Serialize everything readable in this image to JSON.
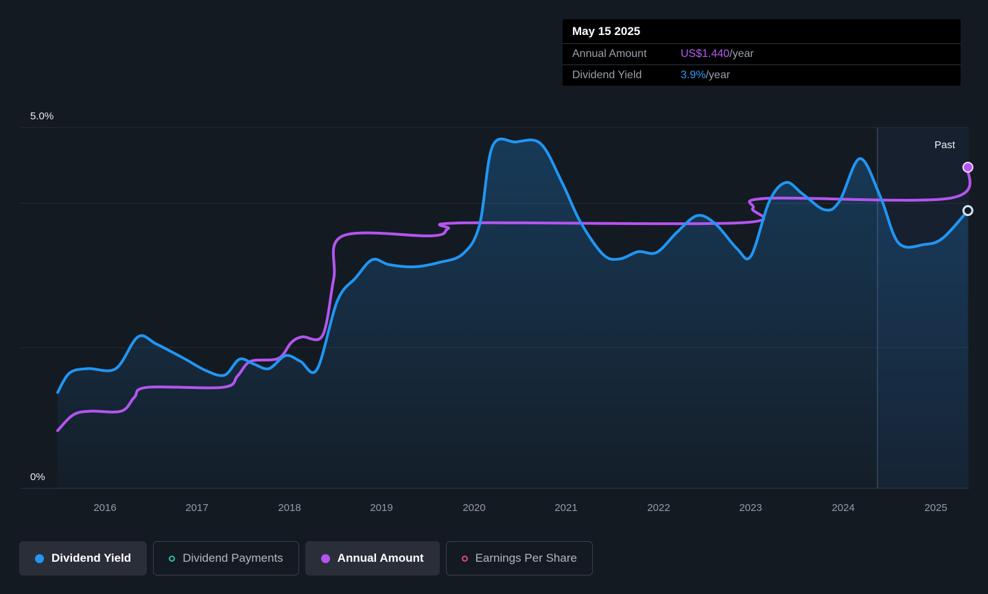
{
  "tooltip": {
    "date": "May 15 2025",
    "rows": [
      {
        "label": "Annual Amount",
        "value": "US$1.440",
        "suffix": "/year",
        "color": "#b85cf2"
      },
      {
        "label": "Dividend Yield",
        "value": "3.9%",
        "suffix": "/year",
        "color": "#2f9df5"
      }
    ]
  },
  "axis": {
    "y_top": "5.0%",
    "y_bottom": "0%",
    "years": [
      "2016",
      "2017",
      "2018",
      "2019",
      "2020",
      "2021",
      "2022",
      "2023",
      "2024",
      "2025"
    ],
    "past_label": "Past"
  },
  "legend": [
    {
      "label": "Dividend Yield",
      "marker": "filled",
      "color": "#2196f3",
      "active": true
    },
    {
      "label": "Dividend Payments",
      "marker": "open",
      "color": "#2abfad",
      "active": false
    },
    {
      "label": "Annual Amount",
      "marker": "filled",
      "color": "#b455f0",
      "active": true
    },
    {
      "label": "Earnings Per Share",
      "marker": "open",
      "color": "#e0487f",
      "active": false
    }
  ],
  "chart_data": {
    "type": "line",
    "title": "Dividend history",
    "x_domain": [
      2015.49,
      2025.36
    ],
    "y_domain": [
      0,
      5
    ],
    "y_unit": "%",
    "gridlines_pct": [
      0,
      1.95,
      3.95,
      5
    ],
    "past_divider_x": 2024.37,
    "series": [
      {
        "name": "Annual Amount",
        "color": "#b455f0",
        "area": false,
        "end_marker": "filled",
        "points": [
          [
            2015.49,
            0.8
          ],
          [
            2015.66,
            1.02
          ],
          [
            2015.85,
            1.07
          ],
          [
            2016.18,
            1.07
          ],
          [
            2016.32,
            1.26
          ],
          [
            2016.46,
            1.4
          ],
          [
            2017.28,
            1.4
          ],
          [
            2017.44,
            1.56
          ],
          [
            2017.58,
            1.76
          ],
          [
            2017.88,
            1.8
          ],
          [
            2018.02,
            2.02
          ],
          [
            2018.14,
            2.1
          ],
          [
            2018.36,
            2.12
          ],
          [
            2018.48,
            2.9
          ],
          [
            2018.58,
            3.5
          ],
          [
            2019.55,
            3.5
          ],
          [
            2019.72,
            3.6
          ],
          [
            2019.9,
            3.68
          ],
          [
            2022.88,
            3.68
          ],
          [
            2023.02,
            3.88
          ],
          [
            2023.18,
            4.02
          ],
          [
            2025.15,
            4.02
          ],
          [
            2025.35,
            4.45
          ]
        ]
      },
      {
        "name": "Dividend Yield",
        "color": "#2196f3",
        "area": true,
        "end_marker": "open",
        "points": [
          [
            2015.49,
            1.33
          ],
          [
            2015.62,
            1.6
          ],
          [
            2015.82,
            1.66
          ],
          [
            2016.12,
            1.66
          ],
          [
            2016.36,
            2.1
          ],
          [
            2016.56,
            2.0
          ],
          [
            2016.86,
            1.8
          ],
          [
            2017.1,
            1.63
          ],
          [
            2017.3,
            1.57
          ],
          [
            2017.46,
            1.79
          ],
          [
            2017.62,
            1.72
          ],
          [
            2017.78,
            1.66
          ],
          [
            2017.96,
            1.84
          ],
          [
            2018.12,
            1.76
          ],
          [
            2018.3,
            1.65
          ],
          [
            2018.52,
            2.6
          ],
          [
            2018.72,
            2.92
          ],
          [
            2018.9,
            3.17
          ],
          [
            2019.08,
            3.1
          ],
          [
            2019.35,
            3.07
          ],
          [
            2019.62,
            3.13
          ],
          [
            2019.88,
            3.25
          ],
          [
            2020.06,
            3.65
          ],
          [
            2020.2,
            4.74
          ],
          [
            2020.45,
            4.8
          ],
          [
            2020.72,
            4.78
          ],
          [
            2020.95,
            4.25
          ],
          [
            2021.15,
            3.7
          ],
          [
            2021.4,
            3.24
          ],
          [
            2021.58,
            3.18
          ],
          [
            2021.78,
            3.28
          ],
          [
            2021.98,
            3.27
          ],
          [
            2022.2,
            3.55
          ],
          [
            2022.42,
            3.78
          ],
          [
            2022.62,
            3.66
          ],
          [
            2022.85,
            3.32
          ],
          [
            2023.0,
            3.22
          ],
          [
            2023.2,
            3.98
          ],
          [
            2023.38,
            4.24
          ],
          [
            2023.56,
            4.08
          ],
          [
            2023.8,
            3.86
          ],
          [
            2023.96,
            3.98
          ],
          [
            2024.18,
            4.57
          ],
          [
            2024.4,
            4.05
          ],
          [
            2024.6,
            3.4
          ],
          [
            2024.88,
            3.38
          ],
          [
            2025.08,
            3.47
          ],
          [
            2025.35,
            3.85
          ]
        ]
      }
    ]
  }
}
